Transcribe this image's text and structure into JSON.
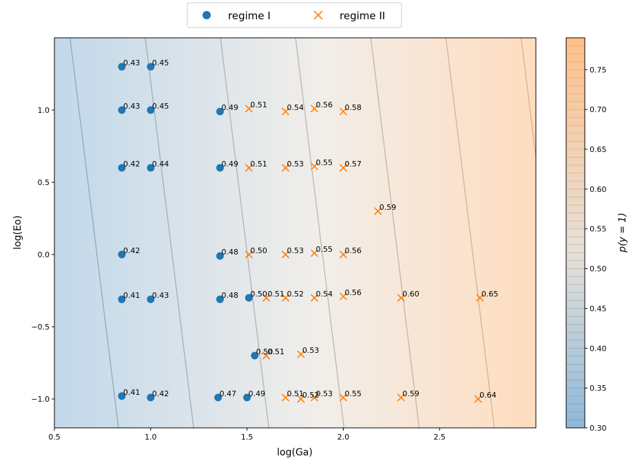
{
  "chart_data": {
    "type": "scatter",
    "title": "",
    "xlabel": "log(Ga)",
    "ylabel": "log(Eo)",
    "xlim": [
      0.5,
      3.0
    ],
    "ylim": [
      -1.2,
      1.5
    ],
    "x_ticks": [
      0.5,
      1.0,
      1.5,
      2.0,
      2.5
    ],
    "x_tick_labels": [
      "0.5",
      "1.0",
      "1.5",
      "2.0",
      "2.5"
    ],
    "y_ticks": [
      -1.0,
      -0.5,
      0.0,
      0.5,
      1.0
    ],
    "y_tick_labels": [
      "−1.0",
      "−0.5",
      "0.0",
      "0.5",
      "1.0"
    ],
    "grid": false,
    "legend": {
      "placement": "top-center",
      "entries": [
        {
          "name": "regime I",
          "marker": "circle",
          "color": "#1f77b4"
        },
        {
          "name": "regime II",
          "marker": "x",
          "color": "#ff7f0e"
        }
      ]
    },
    "colorbar": {
      "label": "p(y = 1)",
      "range": [
        0.3,
        0.79
      ],
      "ticks": [
        0.3,
        0.35,
        0.4,
        0.45,
        0.5,
        0.55,
        0.6,
        0.65,
        0.7,
        0.75
      ],
      "tick_labels": [
        "0.30",
        "0.35",
        "0.40",
        "0.45",
        "0.50",
        "0.55",
        "0.60",
        "0.65",
        "0.70",
        "0.75"
      ],
      "color_low": "#8fb8d8",
      "color_mid": "#e6e0d8",
      "color_high": "#ffc08a"
    },
    "contour_probability_levels": [
      0.4,
      0.45,
      0.5,
      0.55,
      0.6,
      0.65,
      0.7,
      0.75
    ],
    "series": [
      {
        "name": "regime I",
        "marker": "circle",
        "color": "#1f77b4",
        "points": [
          {
            "x": 0.85,
            "y": 1.3,
            "label": "0.43"
          },
          {
            "x": 1.0,
            "y": 1.3,
            "label": "0.45"
          },
          {
            "x": 0.85,
            "y": 1.0,
            "label": "0.43"
          },
          {
            "x": 1.0,
            "y": 1.0,
            "label": "0.45"
          },
          {
            "x": 1.36,
            "y": 0.99,
            "label": "0.49"
          },
          {
            "x": 0.85,
            "y": 0.6,
            "label": "0.42"
          },
          {
            "x": 1.0,
            "y": 0.6,
            "label": "0.44"
          },
          {
            "x": 1.36,
            "y": 0.6,
            "label": "0.49"
          },
          {
            "x": 0.85,
            "y": 0.0,
            "label": "0.42"
          },
          {
            "x": 1.36,
            "y": -0.01,
            "label": "0.48"
          },
          {
            "x": 0.85,
            "y": -0.31,
            "label": "0.41"
          },
          {
            "x": 1.0,
            "y": -0.31,
            "label": "0.43"
          },
          {
            "x": 1.36,
            "y": -0.31,
            "label": "0.48"
          },
          {
            "x": 1.51,
            "y": -0.3,
            "label": "0.50"
          },
          {
            "x": 1.54,
            "y": -0.7,
            "label": "0.50"
          },
          {
            "x": 0.85,
            "y": -0.98,
            "label": "0.41"
          },
          {
            "x": 1.0,
            "y": -0.99,
            "label": "0.42"
          },
          {
            "x": 1.35,
            "y": -0.99,
            "label": "0.47"
          },
          {
            "x": 1.5,
            "y": -0.99,
            "label": "0.49"
          }
        ]
      },
      {
        "name": "regime II",
        "marker": "x",
        "color": "#ff7f0e",
        "points": [
          {
            "x": 1.51,
            "y": 1.01,
            "label": "0.51"
          },
          {
            "x": 1.7,
            "y": 0.99,
            "label": "0.54"
          },
          {
            "x": 1.85,
            "y": 1.01,
            "label": "0.56"
          },
          {
            "x": 2.0,
            "y": 0.99,
            "label": "0.58"
          },
          {
            "x": 1.51,
            "y": 0.6,
            "label": "0.51"
          },
          {
            "x": 1.7,
            "y": 0.6,
            "label": "0.53"
          },
          {
            "x": 1.85,
            "y": 0.61,
            "label": "0.55"
          },
          {
            "x": 2.0,
            "y": 0.6,
            "label": "0.57"
          },
          {
            "x": 2.18,
            "y": 0.3,
            "label": "0.59"
          },
          {
            "x": 1.51,
            "y": 0.0,
            "label": "0.50"
          },
          {
            "x": 1.7,
            "y": 0.0,
            "label": "0.53"
          },
          {
            "x": 1.85,
            "y": 0.01,
            "label": "0.55"
          },
          {
            "x": 2.0,
            "y": 0.0,
            "label": "0.56"
          },
          {
            "x": 1.6,
            "y": -0.3,
            "label": "0.51"
          },
          {
            "x": 1.7,
            "y": -0.3,
            "label": "0.52"
          },
          {
            "x": 1.85,
            "y": -0.3,
            "label": "0.54"
          },
          {
            "x": 2.0,
            "y": -0.29,
            "label": "0.56"
          },
          {
            "x": 2.3,
            "y": -0.3,
            "label": "0.60"
          },
          {
            "x": 2.71,
            "y": -0.3,
            "label": "0.65"
          },
          {
            "x": 1.6,
            "y": -0.7,
            "label": "0.51"
          },
          {
            "x": 1.78,
            "y": -0.69,
            "label": "0.53"
          },
          {
            "x": 1.7,
            "y": -0.99,
            "label": "0.51"
          },
          {
            "x": 1.78,
            "y": -1.0,
            "label": "0.52"
          },
          {
            "x": 1.85,
            "y": -0.99,
            "label": "0.53"
          },
          {
            "x": 2.0,
            "y": -0.99,
            "label": "0.55"
          },
          {
            "x": 2.3,
            "y": -0.99,
            "label": "0.59"
          },
          {
            "x": 2.7,
            "y": -1.0,
            "label": "0.64"
          }
        ]
      }
    ]
  }
}
